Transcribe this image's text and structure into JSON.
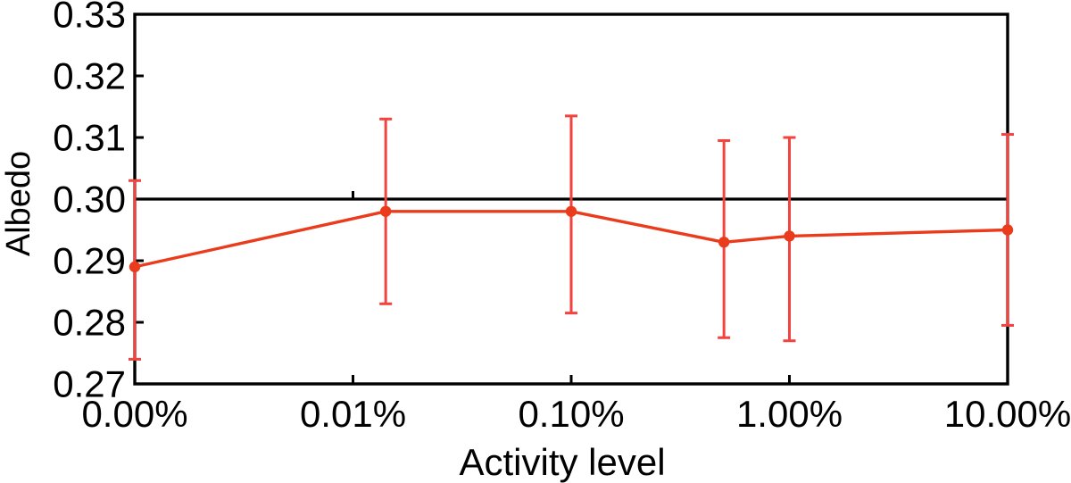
{
  "chart_data": {
    "type": "line",
    "title": "",
    "xlabel": "Activity level",
    "ylabel": "Albedo",
    "background": "#ffffff",
    "axis_color": "#000000",
    "grid": false,
    "legend": null,
    "x_axis": {
      "scale": "log-decades",
      "tick_labels": [
        "0.00%",
        "0.01%",
        "0.10%",
        "1.00%",
        "10.00%"
      ],
      "tick_positions_decades": [
        0,
        1,
        2,
        3,
        4
      ]
    },
    "y_axis": {
      "min": 0.27,
      "max": 0.33,
      "tick_step": 0.01,
      "tick_labels": [
        "0.33",
        "0.32",
        "0.31",
        "0.30",
        "0.29",
        "0.28",
        "0.27"
      ]
    },
    "reference_line": {
      "y": 0.3,
      "color": "#000000",
      "tick_marks_at_decades": [
        1,
        3
      ]
    },
    "series": [
      {
        "name": "albedo-vs-activity-level",
        "color_line": "#ea3c1d",
        "color_marker": "#ea3c1d",
        "color_error": "#f4423e",
        "points": [
          {
            "x_decades": 0.0,
            "activity_approx": "0.00%",
            "albedo": 0.289,
            "err_low": 0.274,
            "err_high": 0.303
          },
          {
            "x_decades": 1.15,
            "activity_approx": "0.014%",
            "albedo": 0.298,
            "err_low": 0.283,
            "err_high": 0.313
          },
          {
            "x_decades": 2.0,
            "activity_approx": "0.10%",
            "albedo": 0.298,
            "err_low": 0.2815,
            "err_high": 0.3135
          },
          {
            "x_decades": 2.7,
            "activity_approx": "0.50%",
            "albedo": 0.293,
            "err_low": 0.2775,
            "err_high": 0.3095
          },
          {
            "x_decades": 3.0,
            "activity_approx": "1.00%",
            "albedo": 0.294,
            "err_low": 0.277,
            "err_high": 0.31
          },
          {
            "x_decades": 4.0,
            "activity_approx": "10.00%",
            "albedo": 0.295,
            "err_low": 0.2795,
            "err_high": 0.3105
          }
        ]
      }
    ]
  }
}
